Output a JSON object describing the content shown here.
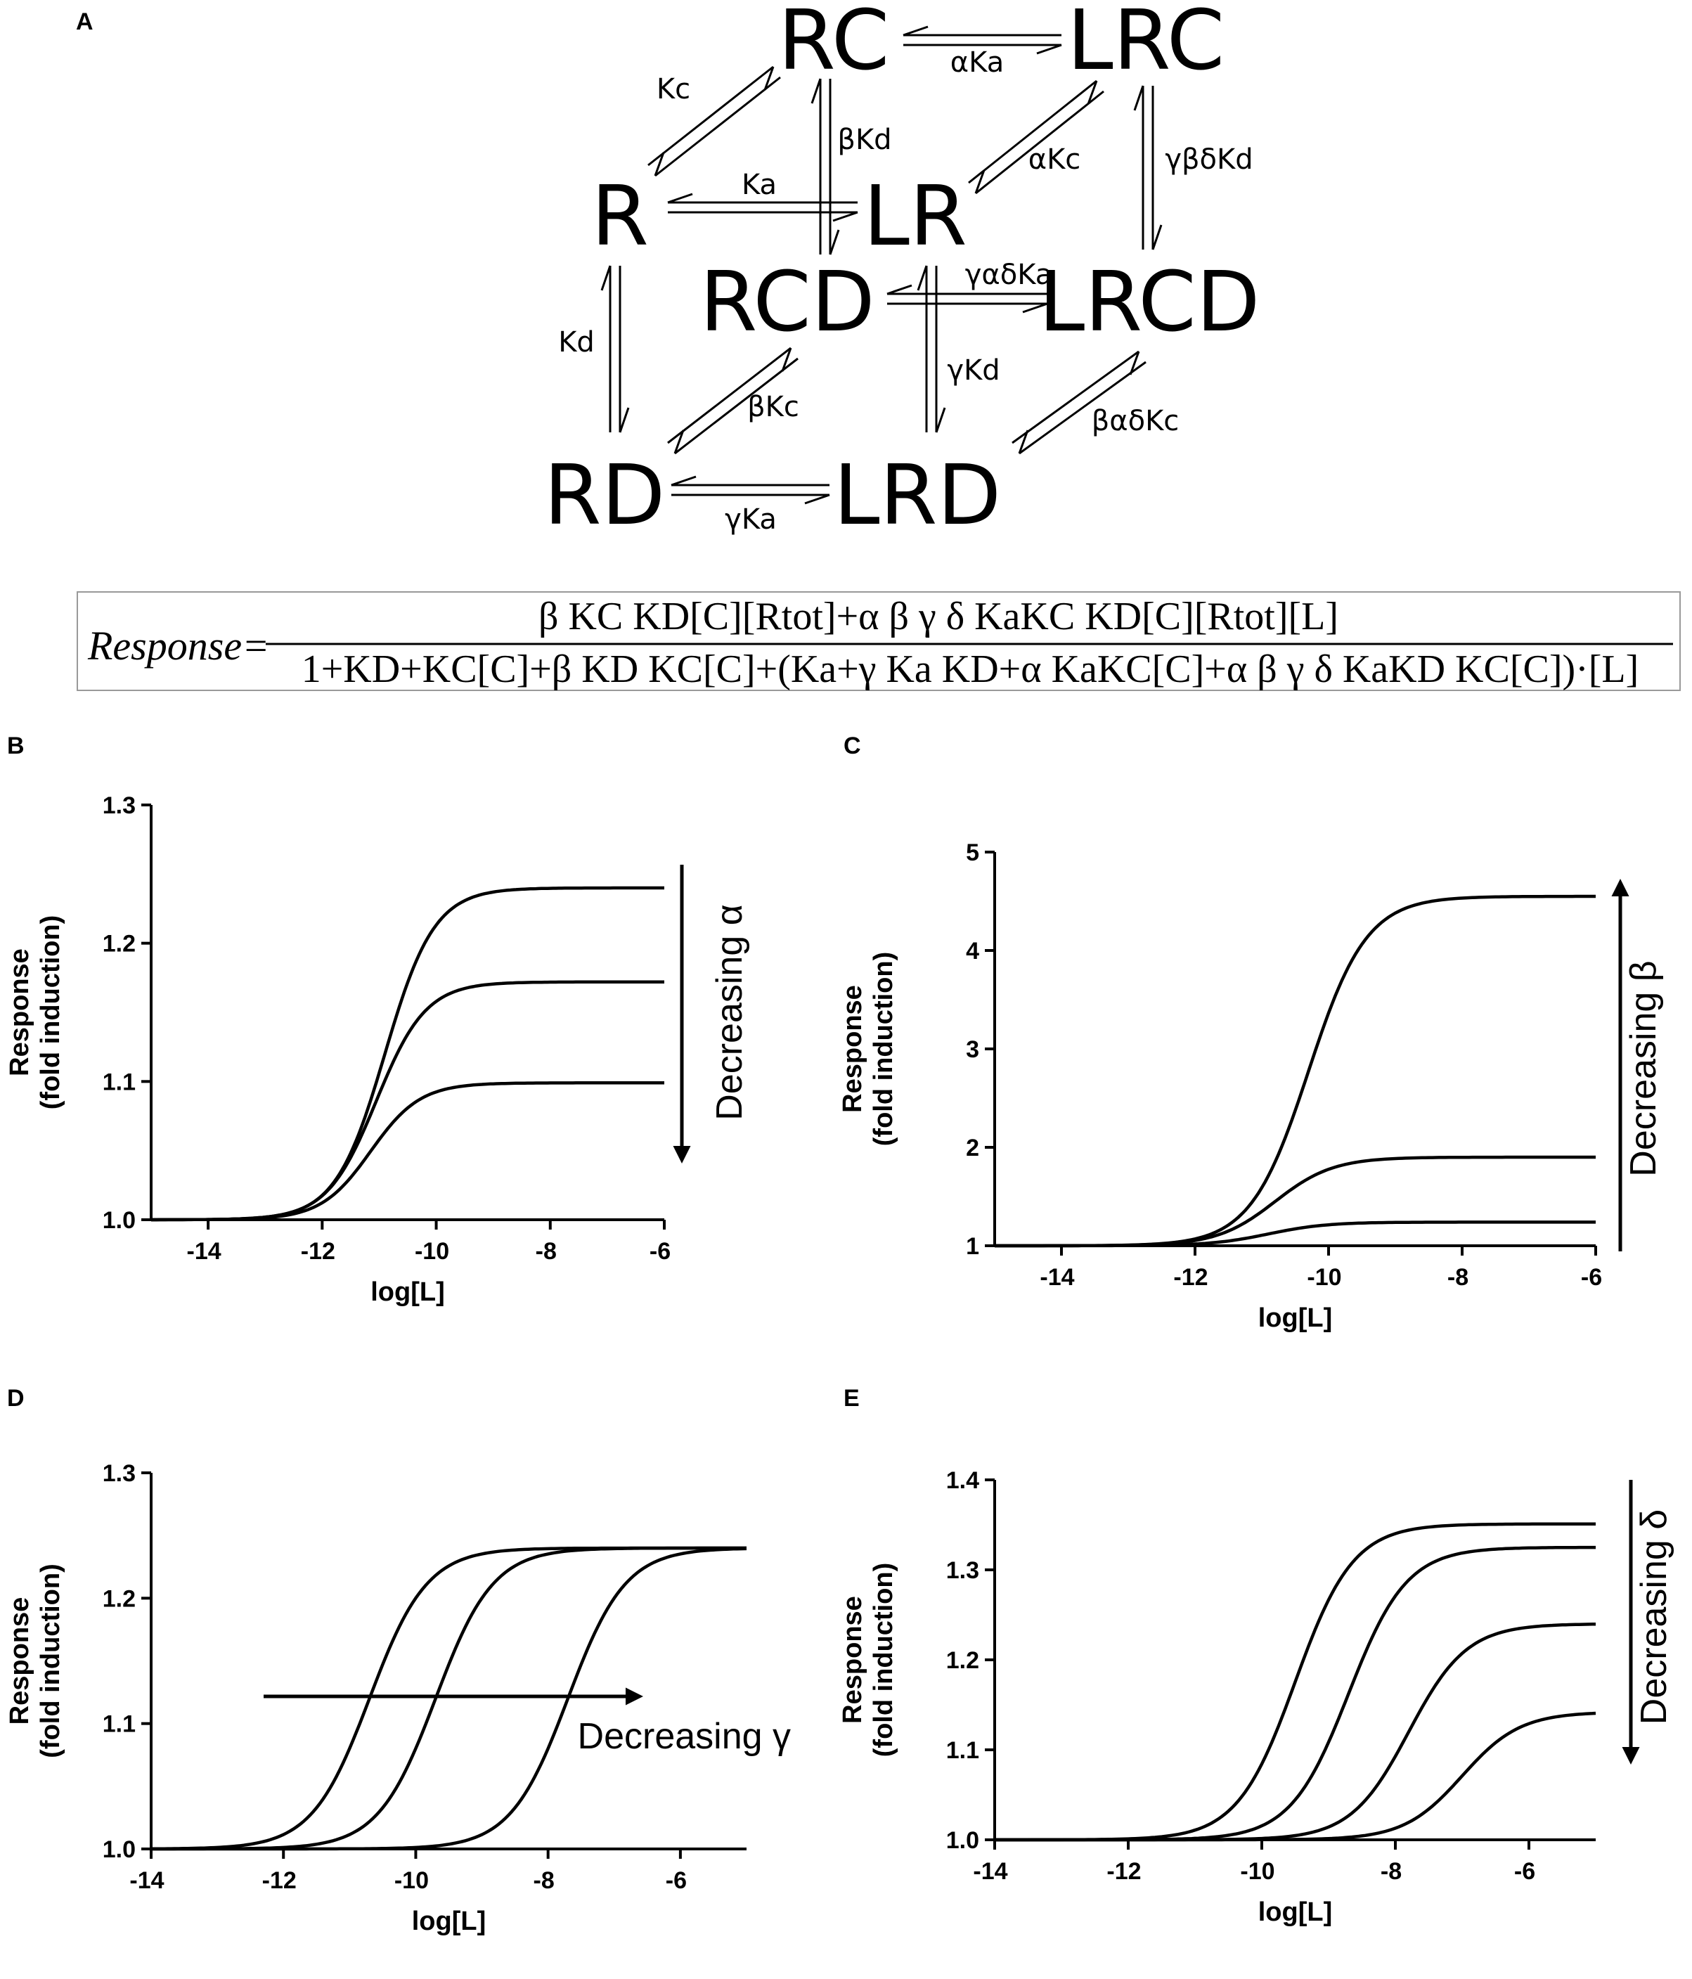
{
  "panel_labels": {
    "A": "A",
    "B": "B",
    "C": "C",
    "D": "D",
    "E": "E"
  },
  "scheme": {
    "species": {
      "RC": "RC",
      "LRC": "LRC",
      "R": "R",
      "LR": "LR",
      "RCD": "RCD",
      "LRCD": "LRCD",
      "RD": "RD",
      "LRD": "LRD"
    },
    "rates": {
      "aKa": "αKa",
      "Kc": "Kc",
      "bKd": "βKd",
      "aKc": "αKc",
      "gbdKd": "γβδKd",
      "Ka": "Ka",
      "gadKa": "γαδKa",
      "Kd": "Kd",
      "bKc": "βKc",
      "gKd": "γKd",
      "badKc": "βαδKc",
      "gKa": "γKa"
    }
  },
  "equation": {
    "label": "Response",
    "equals": "=",
    "numerator": "β KC KD[C][Rtot]+α β γ δ KaKC KD[C][Rtot][L]",
    "denominator": "1+KD+KC[C]+β KD KC[C]+(Ka+γ Ka KD+α KaKC[C]+α β γ δ KaKD KC[C])·[L]"
  },
  "chart_data": [
    {
      "id": "B",
      "type": "line",
      "xlabel": "log[L]",
      "ylabel": "Response",
      "ylabel2": "(fold induction)",
      "xlim": [
        -15,
        -6
      ],
      "ylim": [
        1.0,
        1.3
      ],
      "xticks": [
        -14,
        -12,
        -10,
        -8,
        -6
      ],
      "yticks": [
        1.0,
        1.1,
        1.2,
        1.3
      ],
      "ytick_labels": [
        "1.0",
        "1.1",
        "1.2",
        "1.3"
      ],
      "annotation": "Decreasing α",
      "arrow": "down",
      "series": [
        {
          "top": 1.24,
          "logEC50": -10.9,
          "hill": 1.0
        },
        {
          "top": 1.172,
          "logEC50": -11.05,
          "hill": 1.0
        },
        {
          "top": 1.099,
          "logEC50": -11.15,
          "hill": 1.0
        }
      ]
    },
    {
      "id": "C",
      "type": "line",
      "xlabel": "log[L]",
      "ylabel": "Response",
      "ylabel2": "(fold induction)",
      "xlim": [
        -15,
        -6
      ],
      "ylim": [
        1,
        5
      ],
      "xticks": [
        -14,
        -12,
        -10,
        -8,
        -6
      ],
      "yticks": [
        1,
        2,
        3,
        4,
        5
      ],
      "ytick_labels": [
        "1",
        "2",
        "3",
        "4",
        "5"
      ],
      "annotation": "Decreasing β",
      "arrow": "up",
      "series": [
        {
          "top": 4.55,
          "logEC50": -10.3,
          "hill": 1.0
        },
        {
          "top": 1.9,
          "logEC50": -10.8,
          "hill": 1.0
        },
        {
          "top": 1.24,
          "logEC50": -10.9,
          "hill": 1.0
        }
      ]
    },
    {
      "id": "D",
      "type": "line",
      "xlabel": "log[L]",
      "ylabel": "Response",
      "ylabel2": "(fold induction)",
      "xlim": [
        -14,
        -5
      ],
      "ylim": [
        1.0,
        1.3
      ],
      "xticks": [
        -14,
        -12,
        -10,
        -8,
        -6
      ],
      "yticks": [
        1.0,
        1.1,
        1.2,
        1.3
      ],
      "ytick_labels": [
        "1.0",
        "1.1",
        "1.2",
        "1.3"
      ],
      "annotation": "Decreasing γ",
      "arrow": "right",
      "series": [
        {
          "top": 1.24,
          "logEC50": -10.7,
          "hill": 1.0
        },
        {
          "top": 1.24,
          "logEC50": -9.7,
          "hill": 1.0
        },
        {
          "top": 1.24,
          "logEC50": -7.7,
          "hill": 1.0
        }
      ]
    },
    {
      "id": "E",
      "type": "line",
      "xlabel": "log[L]",
      "ylabel": "Response",
      "ylabel2": "(fold induction)",
      "xlim": [
        -14,
        -5
      ],
      "ylim": [
        1.0,
        1.4
      ],
      "xticks": [
        -14,
        -12,
        -10,
        -8,
        -6
      ],
      "yticks": [
        1.0,
        1.1,
        1.2,
        1.3,
        1.4
      ],
      "ytick_labels": [
        "1.0",
        "1.1",
        "1.2",
        "1.3",
        "1.4"
      ],
      "annotation": "Decreasing δ",
      "arrow": "down",
      "series": [
        {
          "top": 1.351,
          "logEC50": -9.5,
          "hill": 1.0
        },
        {
          "top": 1.325,
          "logEC50": -8.7,
          "hill": 1.0
        },
        {
          "top": 1.24,
          "logEC50": -7.8,
          "hill": 1.0
        },
        {
          "top": 1.142,
          "logEC50": -7.0,
          "hill": 1.0
        }
      ]
    }
  ]
}
